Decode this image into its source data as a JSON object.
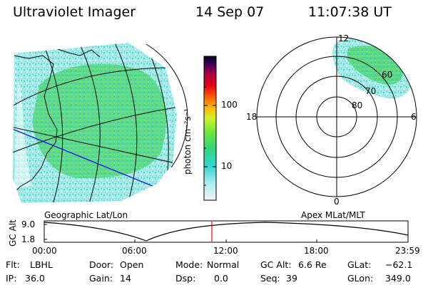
{
  "header": {
    "instrument": "Ultraviolet Imager",
    "date": "14 Sep 07",
    "time": "11:07:38 UT"
  },
  "geo_panel": {
    "label": "Geographic Lat/Lon"
  },
  "colorbar": {
    "unit_label": "photon cm⁻²s⁻¹",
    "ticks": [
      "100",
      "10"
    ]
  },
  "polar_panel": {
    "label": "Apex MLat/MLT",
    "mlt_labels": {
      "top": "12",
      "left": "18",
      "right": "6",
      "bottom": "0"
    },
    "lat_labels": [
      "60",
      "70",
      "80"
    ]
  },
  "alt_plot": {
    "ylabel": "GC Alt",
    "yticks": [
      "9.0",
      "1.8"
    ],
    "xticks": [
      "00:00",
      "06:00",
      "12:00",
      "18:00",
      "23:59"
    ],
    "marker_time": "11:07:38"
  },
  "info": {
    "filter_label": "Flt:",
    "filter_value": "LBHL",
    "ip_label": "IP:",
    "ip_value": "36.0",
    "door_label": "Door:",
    "door_value": "Open",
    "gain_label": "Gain:",
    "gain_value": "14",
    "mode_label": "Mode:",
    "mode_value": "Normal",
    "dsp_label": "Dsp:",
    "dsp_value": "0.0",
    "gcalt_label": "GC Alt:",
    "gcalt_value": "6.6 Re",
    "seq_label": "Seq:",
    "seq_value": "39",
    "glat_label": "GLat:",
    "glat_value": "−62.1",
    "glon_label": "GLon:",
    "glon_value": "349.0"
  },
  "colors": {
    "trace": "#0000ee",
    "marker": "#ee0000",
    "aurora_low": "#9fe8e8",
    "aurora_mid": "#49d68f",
    "aurora_high": "#6fe03a"
  }
}
